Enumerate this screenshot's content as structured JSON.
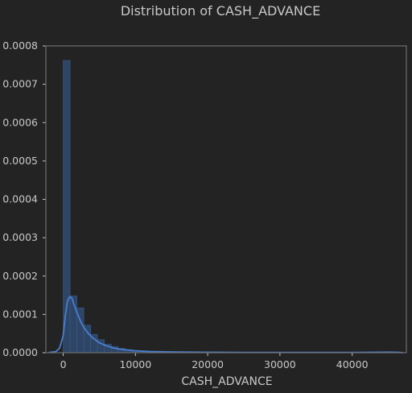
{
  "chart_data": {
    "type": "bar",
    "subtype": "histogram-with-kde",
    "title": "Distribution of CASH_ADVANCE",
    "xlabel": "CASH_ADVANCE",
    "ylabel": "",
    "xlim": [
      -2400,
      47500
    ],
    "ylim": [
      0,
      0.0008
    ],
    "xticks": [
      0,
      10000,
      20000,
      30000,
      40000
    ],
    "yticks": [
      0.0,
      0.0001,
      0.0002,
      0.0003,
      0.0004,
      0.0005,
      0.0006,
      0.0007,
      0.0008
    ],
    "xtick_labels": [
      "0",
      "10000",
      "20000",
      "30000",
      "40000"
    ],
    "ytick_labels": [
      "0.0000",
      "0.0001",
      "0.0002",
      "0.0003",
      "0.0004",
      "0.0005",
      "0.0006",
      "0.0007",
      "0.0008"
    ],
    "grid": false,
    "bins": {
      "start": 0,
      "width": 950,
      "densities": [
        0.000762,
        0.000148,
        0.000117,
        7.2e-05,
        4.8e-05,
        3.4e-05,
        2.2e-05,
        1.6e-05,
        1.1e-05,
        8e-06,
        6e-06,
        4.5e-06,
        3.5e-06,
        3e-06,
        2.5e-06,
        2e-06,
        1.8e-06,
        1.5e-06,
        1.3e-06,
        1.1e-06,
        1e-06,
        9e-07,
        8e-07,
        7e-07,
        6e-07,
        5e-07,
        5e-07,
        4e-07,
        4e-07,
        3e-07,
        3e-07,
        3e-07,
        3e-07,
        2e-07,
        2e-07,
        2e-07,
        2e-07,
        2e-07,
        2e-07,
        2e-07,
        2e-07,
        2e-07,
        2e-07,
        2e-07,
        2e-07,
        2e-07,
        2e-07,
        2e-07,
        2e-07,
        2e-07
      ]
    },
    "kde": {
      "x": [
        -2000,
        -1000,
        -500,
        0,
        300,
        600,
        900,
        1200,
        1500,
        2000,
        2500,
        3000,
        3500,
        4000,
        5000,
        6000,
        7000,
        8000,
        10000,
        12000,
        15000,
        20000,
        25000,
        30000,
        35000,
        40000,
        45000,
        46500,
        47000
      ],
      "y": [
        5e-07,
        3e-06,
        1.2e-05,
        4.5e-05,
        9.8e-05,
        0.000135,
        0.000146,
        0.000143,
        0.000125,
        0.0001,
        7.8e-05,
        6.2e-05,
        5e-05,
        4e-05,
        2.6e-05,
        1.8e-05,
        1.2e-05,
        9e-06,
        5e-06,
        3e-06,
        2e-06,
        1.2e-06,
        8e-07,
        8e-07,
        8e-07,
        8e-07,
        1.5e-06,
        1e-06,
        2e-07
      ]
    },
    "colors": {
      "background": "#232323",
      "axes_face": "#232323",
      "frame": "#6e6e6e",
      "text": "#c8c8c8",
      "bar_fill": "#2e4566",
      "bar_edge": "#3b5d8c",
      "kde_line": "#4a7fd0"
    }
  }
}
